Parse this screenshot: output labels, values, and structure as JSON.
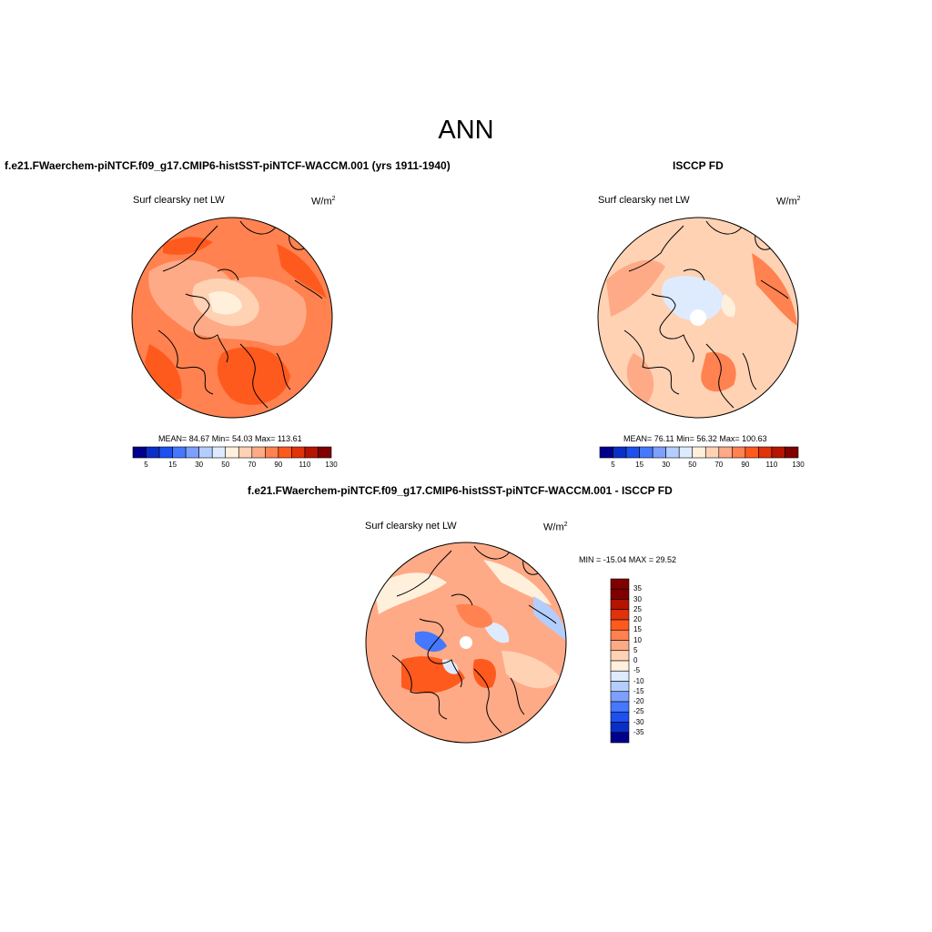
{
  "page": {
    "title": "ANN"
  },
  "panels": [
    {
      "title": "f.e21.FWaerchem-piNTCF.f09_g17.CMIP6-histSST-piNTCF-WACCM.001 (yrs 1911-1940)",
      "variable": "Surf clearsky net LW",
      "units": "W/m",
      "units_sup": "2",
      "stats": "MEAN=  84.67  Min=  54.03  Max= 113.61",
      "colorbar_labels": [
        "5",
        "15",
        "30",
        "50",
        "70",
        "90",
        "110",
        "130"
      ]
    },
    {
      "title": "ISCCP FD",
      "variable": "Surf clearsky net LW",
      "units": "W/m",
      "units_sup": "2",
      "stats": "MEAN=  76.11  Min=  56.32  Max= 100.63",
      "colorbar_labels": [
        "5",
        "15",
        "30",
        "50",
        "70",
        "90",
        "110",
        "130"
      ]
    },
    {
      "title": "f.e21.FWaerchem-piNTCF.f09_g17.CMIP6-histSST-piNTCF-WACCM.001 - ISCCP FD",
      "variable": "Surf clearsky net LW",
      "units": "W/m",
      "units_sup": "2",
      "stats": "MIN = -15.04 MAX =  29.52",
      "colorbar_labels": [
        "35",
        "30",
        "25",
        "20",
        "15",
        "10",
        "5",
        "0",
        "-5",
        "-10",
        "-15",
        "-20",
        "-25",
        "-30",
        "-35"
      ]
    }
  ],
  "colors": {
    "abs_scale": [
      "#00008b",
      "#0a2fc8",
      "#1e50f0",
      "#4678ff",
      "#7da0ff",
      "#b4cdff",
      "#deebff",
      "#fff0dc",
      "#ffd2b4",
      "#ffaa87",
      "#ff8250",
      "#ff5a1e",
      "#e1320a",
      "#b41400",
      "#800000"
    ],
    "diff_scale": [
      "#800000",
      "#b41400",
      "#e1320a",
      "#ff5a1e",
      "#ff8250",
      "#ffaa87",
      "#ffd2b4",
      "#fff0dc",
      "#deebff",
      "#b4cdff",
      "#7da0ff",
      "#4678ff",
      "#1e50f0",
      "#0a2fc8",
      "#00008b"
    ]
  }
}
